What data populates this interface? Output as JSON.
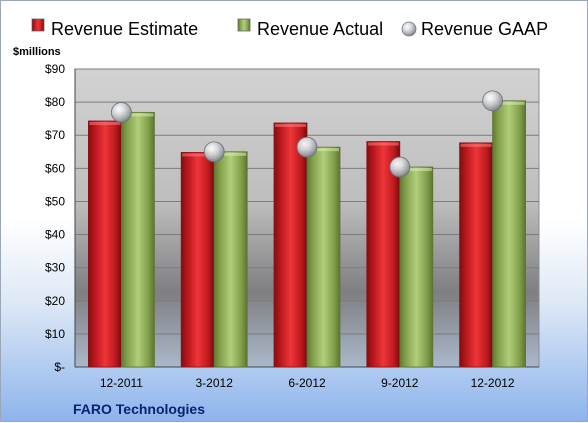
{
  "chart_data": {
    "type": "bar",
    "categories": [
      "12-2011",
      "3-2012",
      "6-2012",
      "9-2012",
      "12-2012"
    ],
    "series": [
      {
        "name": "Revenue Estimate",
        "kind": "bar",
        "color": "#cc1f24",
        "values": [
          74.3,
          64.8,
          73.7,
          68.1,
          67.7
        ]
      },
      {
        "name": "Revenue Actual",
        "kind": "bar",
        "color": "#8cab55",
        "values": [
          76.9,
          65.0,
          66.4,
          60.4,
          80.4
        ]
      },
      {
        "name": "Revenue GAAP",
        "kind": "marker",
        "color": "#b8bcc2",
        "values": [
          76.9,
          65.0,
          66.4,
          60.4,
          80.4
        ]
      }
    ],
    "title": "",
    "xlabel": "",
    "ylabel": "$millions",
    "ylim": [
      0,
      90
    ],
    "yticks": [
      0,
      10,
      20,
      30,
      40,
      50,
      60,
      70,
      80,
      90
    ],
    "ytick_labels": [
      "$-",
      "$10",
      "$20",
      "$30",
      "$40",
      "$50",
      "$60",
      "$70",
      "$80",
      "$90"
    ],
    "grid": true,
    "legend": "top"
  },
  "footer": {
    "company": "FARO Technologies"
  }
}
